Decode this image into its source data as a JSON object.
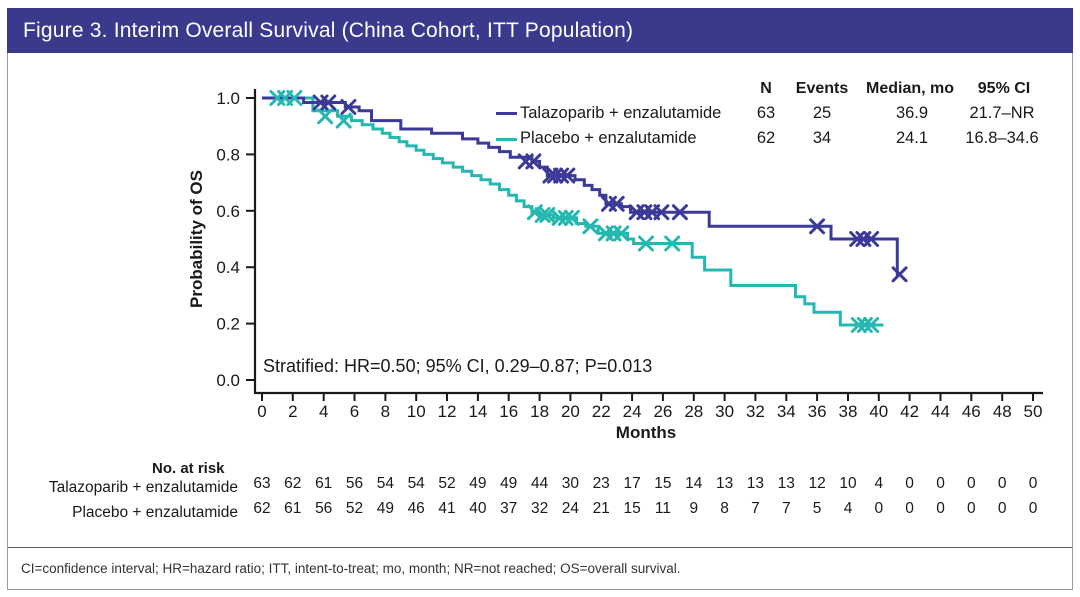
{
  "figure": {
    "title": "Figure 3. Interim Overall Survival (China Cohort, ITT Population)",
    "footnote": "CI=confidence interval; HR=hazard ratio; ITT, intent-to-treat; mo, month; NR=not reached; OS=overall survival."
  },
  "colors": {
    "title_bar": "#3a3a8c",
    "frame_border": "#9b9b9b",
    "footer_divider": "#5a5a5a",
    "axis": "#1a1a1a",
    "talazoparib": "#3c3a99",
    "placebo": "#25b8b0"
  },
  "summary_table": {
    "headers": [
      "N",
      "Events",
      "Median, mo",
      "95% CI"
    ],
    "rows": [
      {
        "name": "Talazoparib + enzalutamide",
        "n": "63",
        "events": "25",
        "median": "36.9",
        "ci": "21.7–NR"
      },
      {
        "name": "Placebo + enzalutamide",
        "n": "62",
        "events": "34",
        "median": "24.1",
        "ci": "16.8–34.6"
      }
    ]
  },
  "at_risk": {
    "title": "No. at risk",
    "timepoints": [
      0,
      2,
      4,
      6,
      8,
      10,
      12,
      14,
      16,
      18,
      20,
      22,
      24,
      26,
      28,
      30,
      32,
      34,
      36,
      38,
      40,
      42,
      44,
      46,
      48,
      50
    ],
    "rows": [
      {
        "label": "Talazoparib + enzalutamide",
        "values": [
          63,
          62,
          61,
          56,
          54,
          54,
          52,
          49,
          49,
          44,
          30,
          23,
          17,
          15,
          14,
          13,
          13,
          13,
          12,
          10,
          4,
          0,
          0,
          0,
          0,
          0
        ]
      },
      {
        "label": "Placebo + enzalutamide",
        "values": [
          62,
          61,
          56,
          52,
          49,
          46,
          41,
          40,
          37,
          32,
          24,
          21,
          15,
          11,
          9,
          8,
          7,
          7,
          5,
          4,
          0,
          0,
          0,
          0,
          0,
          0
        ]
      }
    ]
  },
  "chart_data": {
    "type": "line",
    "subtype": "kaplan-meier-step",
    "xlabel": "Months",
    "ylabel": "Probability of OS",
    "xlim": [
      0,
      50
    ],
    "xtick_step": 2,
    "ylim": [
      0,
      1.0
    ],
    "ytick_labels": [
      "0.0",
      "0.2",
      "0.4",
      "0.6",
      "0.8",
      "1.0"
    ],
    "grid": false,
    "legend_position": "top-right-inside",
    "annotation": "Stratified: HR=0.50; 95% CI, 0.29–0.87; P=0.013",
    "series": [
      {
        "name": "Talazoparib + enzalutamide",
        "color": "#3c3a99",
        "n": 63,
        "events": 25,
        "median_mo": "36.9",
        "ci_95": "21.7–NR",
        "steps": [
          [
            0,
            1.0
          ],
          [
            2.7,
            0.984
          ],
          [
            5.4,
            0.968
          ],
          [
            6.3,
            0.955
          ],
          [
            7.1,
            0.92
          ],
          [
            9.0,
            0.89
          ],
          [
            11.0,
            0.875
          ],
          [
            13.0,
            0.855
          ],
          [
            14.0,
            0.84
          ],
          [
            14.7,
            0.825
          ],
          [
            15.4,
            0.81
          ],
          [
            16.1,
            0.79
          ],
          [
            17.5,
            0.775
          ],
          [
            18.0,
            0.755
          ],
          [
            18.5,
            0.725
          ],
          [
            20.3,
            0.71
          ],
          [
            20.9,
            0.69
          ],
          [
            21.4,
            0.675
          ],
          [
            21.9,
            0.655
          ],
          [
            22.3,
            0.625
          ],
          [
            23.3,
            0.615
          ],
          [
            23.9,
            0.595
          ],
          [
            29.0,
            0.545
          ],
          [
            36.9,
            0.5
          ],
          [
            41.2,
            0.375
          ]
        ],
        "end": 41.35,
        "censors": [
          [
            3.8,
            0.984
          ],
          [
            4.3,
            0.984
          ],
          [
            5.6,
            0.968
          ],
          [
            17.1,
            0.775
          ],
          [
            17.6,
            0.775
          ],
          [
            18.7,
            0.725
          ],
          [
            19.0,
            0.725
          ],
          [
            19.4,
            0.725
          ],
          [
            19.8,
            0.725
          ],
          [
            22.5,
            0.625
          ],
          [
            23.0,
            0.625
          ],
          [
            24.3,
            0.595
          ],
          [
            24.8,
            0.595
          ],
          [
            25.3,
            0.595
          ],
          [
            25.9,
            0.595
          ],
          [
            27.1,
            0.595
          ],
          [
            36.0,
            0.545
          ],
          [
            38.6,
            0.5
          ],
          [
            39.0,
            0.5
          ],
          [
            39.5,
            0.5
          ],
          [
            41.35,
            0.375
          ]
        ]
      },
      {
        "name": "Placebo + enzalutamide",
        "color": "#25b8b0",
        "n": 62,
        "events": 34,
        "median_mo": "24.1",
        "ci_95": "16.8–34.6",
        "steps": [
          [
            0,
            1.0
          ],
          [
            3.3,
            0.955
          ],
          [
            4.9,
            0.935
          ],
          [
            5.8,
            0.92
          ],
          [
            6.5,
            0.905
          ],
          [
            7.2,
            0.89
          ],
          [
            7.8,
            0.875
          ],
          [
            8.3,
            0.86
          ],
          [
            8.9,
            0.845
          ],
          [
            9.4,
            0.83
          ],
          [
            10.0,
            0.815
          ],
          [
            10.5,
            0.8
          ],
          [
            11.1,
            0.785
          ],
          [
            11.7,
            0.77
          ],
          [
            12.4,
            0.755
          ],
          [
            13.0,
            0.74
          ],
          [
            13.6,
            0.725
          ],
          [
            14.2,
            0.71
          ],
          [
            14.8,
            0.695
          ],
          [
            15.4,
            0.675
          ],
          [
            16.0,
            0.655
          ],
          [
            16.5,
            0.635
          ],
          [
            17.0,
            0.615
          ],
          [
            17.5,
            0.595
          ],
          [
            18.0,
            0.585
          ],
          [
            18.9,
            0.575
          ],
          [
            20.4,
            0.555
          ],
          [
            21.0,
            0.545
          ],
          [
            21.8,
            0.52
          ],
          [
            23.7,
            0.5
          ],
          [
            24.1,
            0.484
          ],
          [
            27.9,
            0.435
          ],
          [
            28.7,
            0.39
          ],
          [
            30.4,
            0.335
          ],
          [
            34.6,
            0.295
          ],
          [
            35.2,
            0.27
          ],
          [
            35.8,
            0.24
          ],
          [
            37.5,
            0.195
          ]
        ],
        "end": 40.3,
        "censors": [
          [
            1.0,
            1.0
          ],
          [
            1.5,
            1.0
          ],
          [
            2.1,
            1.0
          ],
          [
            4.1,
            0.935
          ],
          [
            5.3,
            0.92
          ],
          [
            17.7,
            0.595
          ],
          [
            18.2,
            0.585
          ],
          [
            18.5,
            0.585
          ],
          [
            19.3,
            0.575
          ],
          [
            19.7,
            0.575
          ],
          [
            20.1,
            0.575
          ],
          [
            21.3,
            0.545
          ],
          [
            22.3,
            0.52
          ],
          [
            22.8,
            0.52
          ],
          [
            23.3,
            0.52
          ],
          [
            24.9,
            0.484
          ],
          [
            26.6,
            0.484
          ],
          [
            38.7,
            0.195
          ],
          [
            39.1,
            0.195
          ],
          [
            39.5,
            0.195
          ]
        ]
      }
    ]
  }
}
